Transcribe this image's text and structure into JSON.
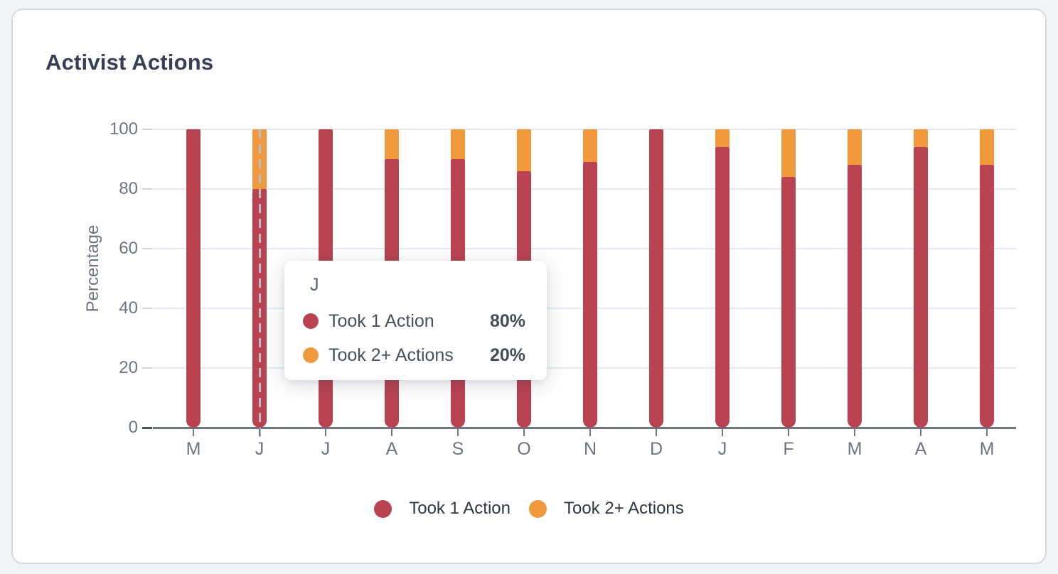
{
  "header": {
    "title": "Activist Actions"
  },
  "colors": {
    "took_1_action": "#b94351",
    "took_2plus_actions": "#f0993d",
    "page_background": "#f3f4f6",
    "card_border": "#d5d9e0",
    "gridline": "#e6eaf4",
    "axis": "#6d7580",
    "title_text": "#363f56"
  },
  "chart_data": {
    "type": "bar",
    "stacked": true,
    "title": "Activist Actions",
    "xlabel": "",
    "ylabel": "Percentage",
    "ylim": [
      0,
      100
    ],
    "yticks": [
      0,
      20,
      40,
      60,
      80,
      100
    ],
    "grid": true,
    "legend_position": "bottom",
    "categories": [
      "M",
      "J",
      "J",
      "A",
      "S",
      "O",
      "N",
      "D",
      "J",
      "F",
      "M",
      "A",
      "M"
    ],
    "series": [
      {
        "name": "Took 1 Action",
        "color": "#b94351",
        "values": [
          100,
          80,
          100,
          90,
          90,
          86,
          89,
          100,
          94,
          84,
          88,
          94,
          88
        ]
      },
      {
        "name": "Took 2+ Actions",
        "color": "#f0993d",
        "values": [
          0,
          20,
          0,
          10,
          10,
          14,
          11,
          0,
          6,
          16,
          12,
          6,
          12
        ]
      }
    ],
    "hovered_index": 1
  },
  "tooltip": {
    "title": "J",
    "rows": [
      {
        "label": "Took 1 Action",
        "value": "80%",
        "color": "#b94351"
      },
      {
        "label": "Took 2+ Actions",
        "value": "20%",
        "color": "#f0993d"
      }
    ]
  }
}
